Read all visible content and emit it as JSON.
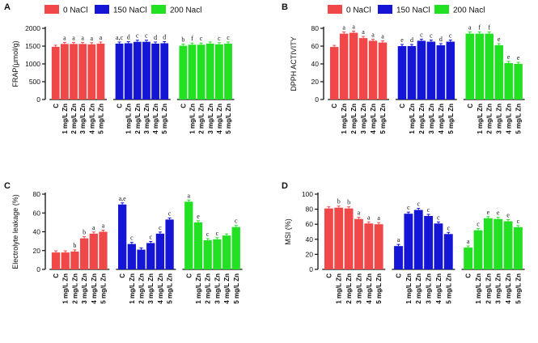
{
  "colors": {
    "nacl_0": "#f04848",
    "nacl_150": "#1515d6",
    "nacl_200": "#22e022",
    "axis": "#111111"
  },
  "chart_data": [
    {
      "panel": "A",
      "type": "bar",
      "ylabel": "FRAP(μmol/g)",
      "ylim": [
        0,
        2000
      ],
      "yticks": [
        0,
        500,
        1000,
        1500,
        2000
      ],
      "legend": [
        "0 NaCl",
        "150 NaCl",
        "200 Nacl"
      ],
      "categories": [
        "C",
        "1 mg/L Zn",
        "2 mg/L Zn",
        "3 mg/L Zn",
        "4 mg/L Zn",
        "5 mg/L Zn"
      ],
      "series": [
        {
          "name": "0 NaCl",
          "values": [
            1480,
            1560,
            1560,
            1560,
            1550,
            1570
          ],
          "letters": [
            "",
            "a",
            "a",
            "a",
            "a",
            "a"
          ]
        },
        {
          "name": "150 NaCl",
          "values": [
            1570,
            1580,
            1620,
            1620,
            1570,
            1580
          ],
          "letters": [
            "a,c",
            "d",
            "c",
            "c",
            "d",
            "d"
          ]
        },
        {
          "name": "200 Nacl",
          "values": [
            1510,
            1540,
            1540,
            1570,
            1550,
            1570
          ],
          "letters": [
            "b",
            "f",
            "c",
            "",
            "c",
            "c"
          ]
        }
      ]
    },
    {
      "panel": "B",
      "type": "bar",
      "ylabel": "DPPH ACTIVITY",
      "ylim": [
        0,
        80
      ],
      "yticks": [
        0,
        20,
        40,
        60,
        80
      ],
      "legend": [
        "0 NaCl",
        "150 NaCl",
        "200 Nacl"
      ],
      "categories": [
        "C",
        "1 mg/L Zn",
        "2 mg/L Zn",
        "3 mg/L Zn",
        "4 mg/L Zn",
        "5 mg/L Zn"
      ],
      "series": [
        {
          "name": "0 NaCl",
          "values": [
            59,
            74,
            75,
            69,
            66,
            64
          ],
          "letters": [
            "",
            "a",
            "a",
            "a",
            "a",
            "a"
          ]
        },
        {
          "name": "150 NaCl",
          "values": [
            60,
            60,
            66,
            65,
            61,
            65
          ],
          "letters": [
            "e",
            "d",
            "c",
            "c",
            "d",
            "c"
          ]
        },
        {
          "name": "200 Nacl",
          "values": [
            74,
            74,
            74,
            61,
            41,
            40
          ],
          "letters": [
            "a",
            "f",
            "f",
            "e",
            "e",
            "e"
          ]
        }
      ]
    },
    {
      "panel": "C",
      "type": "bar",
      "ylabel": "Electrolyte leakage  (%)",
      "ylim": [
        0,
        80
      ],
      "yticks": [
        0,
        20,
        40,
        60,
        80
      ],
      "categories": [
        "C",
        "1 mg/L Zn",
        "2 mg/L Zn",
        "3 mg/L Zn",
        "4 mg/L Zn",
        "5 mg/L Zn"
      ],
      "series": [
        {
          "name": "0 NaCl",
          "values": [
            18,
            18,
            19,
            33,
            38,
            40
          ],
          "letters": [
            "",
            "",
            "b",
            "b",
            "a",
            "a"
          ]
        },
        {
          "name": "150 NaCl",
          "values": [
            69,
            27,
            21,
            28,
            38,
            53
          ],
          "letters": [
            "a,e",
            "c",
            "",
            "c",
            "c",
            "c"
          ]
        },
        {
          "name": "200 Nacl",
          "values": [
            72,
            50,
            31,
            32,
            36,
            45
          ],
          "letters": [
            "a",
            "e",
            "c",
            "c",
            "",
            "c"
          ]
        }
      ]
    },
    {
      "panel": "D",
      "type": "bar",
      "ylabel": "MSI (%)",
      "ylim": [
        0,
        100
      ],
      "yticks": [
        0,
        20,
        40,
        60,
        80,
        100
      ],
      "categories": [
        "C",
        "1 mg/L Zn",
        "2 mg/L Zn",
        "3 mg/L Zn",
        "4 mg/L Zn",
        "5 mg/L Zn"
      ],
      "series": [
        {
          "name": "0 NaCl",
          "values": [
            81,
            82,
            81,
            67,
            61,
            60
          ],
          "letters": [
            "",
            "b",
            "b",
            "a",
            "a",
            "a"
          ]
        },
        {
          "name": "150 NaCl",
          "values": [
            31,
            74,
            79,
            71,
            61,
            47
          ],
          "letters": [
            "a",
            "c",
            "c",
            "c",
            "c",
            "c"
          ]
        },
        {
          "name": "200 Nacl",
          "values": [
            29,
            52,
            68,
            67,
            64,
            56
          ],
          "letters": [
            "a",
            "c",
            "e",
            "e",
            "e",
            "c"
          ]
        }
      ]
    }
  ]
}
